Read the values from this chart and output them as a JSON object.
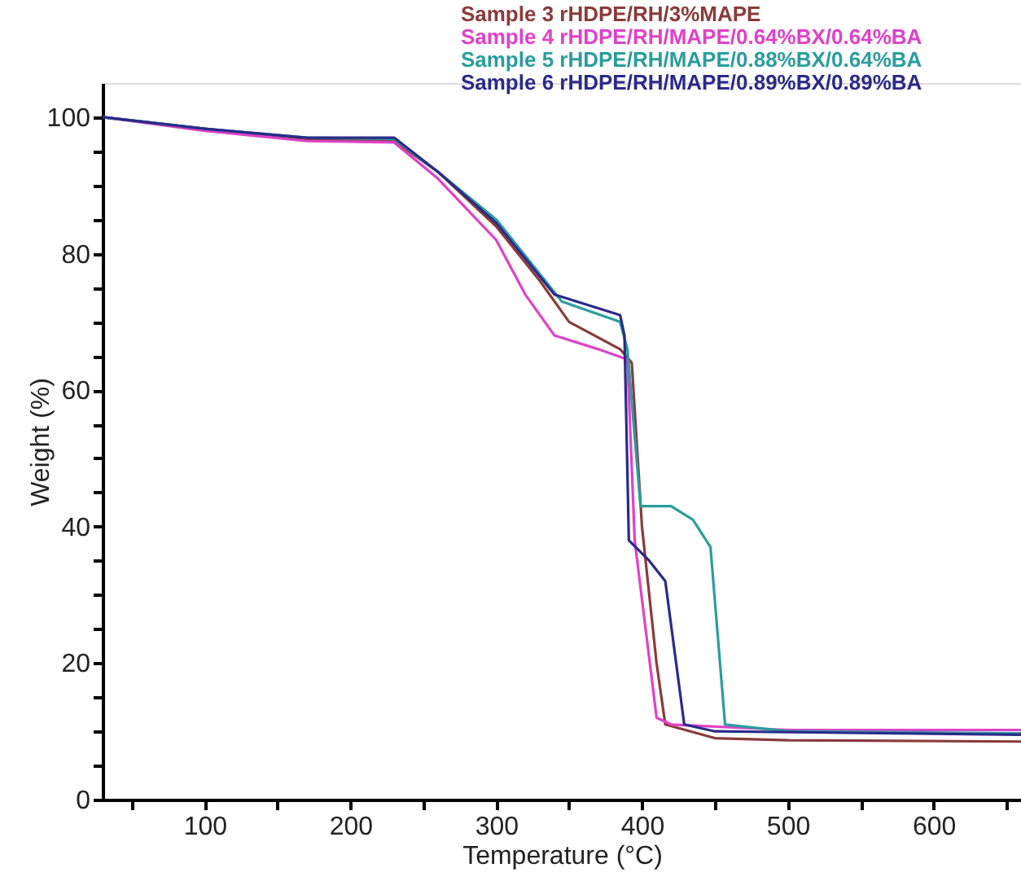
{
  "chart_data": {
    "type": "line",
    "xlabel": "Temperature (°C)",
    "ylabel": "Weight (%)",
    "xlim": [
      30,
      660
    ],
    "ylim": [
      0,
      105
    ],
    "xticks": [
      {
        "value": 50,
        "label": null
      },
      100,
      {
        "value": 150,
        "label": null
      },
      200,
      {
        "value": 250,
        "label": null
      },
      300,
      {
        "value": 350,
        "label": null
      },
      400,
      {
        "value": 450,
        "label": null
      },
      500,
      {
        "value": 550,
        "label": null
      },
      600,
      {
        "value": 650,
        "label": null
      }
    ],
    "yticks": [
      0,
      {
        "value": 5,
        "label": null
      },
      {
        "value": 10,
        "label": null
      },
      {
        "value": 15,
        "label": null
      },
      20,
      {
        "value": 25,
        "label": null
      },
      {
        "value": 30,
        "label": null
      },
      {
        "value": 35,
        "label": null
      },
      40,
      {
        "value": 45,
        "label": null
      },
      {
        "value": 50,
        "label": null
      },
      {
        "value": 55,
        "label": null
      },
      60,
      {
        "value": 65,
        "label": null
      },
      {
        "value": 70,
        "label": null
      },
      {
        "value": 75,
        "label": null
      },
      80,
      {
        "value": 85,
        "label": null
      },
      {
        "value": 90,
        "label": null
      },
      {
        "value": 95,
        "label": null
      },
      100
    ],
    "grid": false,
    "legend": "top right",
    "marker": "none",
    "line_style": "solid",
    "series": [
      {
        "name": "Sample 3  rHDPE/RH/3%MAPE",
        "color": "#8b3a3a",
        "x": [
          30,
          100,
          170,
          230,
          260,
          300,
          330,
          350,
          385,
          393,
          400,
          410,
          416,
          450,
          500,
          660
        ],
        "values": [
          100,
          98.3,
          96.8,
          96.5,
          92,
          84,
          76,
          70,
          66,
          64,
          40,
          20,
          11,
          9,
          8.7,
          8.5
        ]
      },
      {
        "name": "Sample 4  rHDPE/RH/MAPE/0.64%BX/0.64%BA",
        "color": "#e040c8",
        "x": [
          30,
          100,
          170,
          230,
          260,
          300,
          320,
          340,
          370,
          390,
          395,
          410,
          420,
          500,
          660
        ],
        "values": [
          100,
          98,
          96.5,
          96.3,
          91,
          82,
          74,
          68,
          66,
          64.5,
          38,
          12,
          11,
          10.2,
          10.2
        ]
      },
      {
        "name": "Sample 5  rHDPE/RH/MAPE/0.88%BX/0.64%BA",
        "color": "#2a9d9d",
        "x": [
          30,
          100,
          170,
          230,
          260,
          300,
          330,
          345,
          385,
          390,
          399,
          420,
          435,
          447,
          457,
          500,
          660
        ],
        "values": [
          100,
          98.3,
          97,
          96.8,
          92,
          85,
          77,
          73,
          70,
          66,
          43,
          43,
          41,
          37,
          11,
          10,
          9.7
        ]
      },
      {
        "name": "Sample 6  rHDPE/RH/MAPE/0.89%BX/0.89%BA",
        "color": "#2a2a8a",
        "x": [
          30,
          100,
          170,
          230,
          260,
          300,
          340,
          385,
          388,
          391,
          405,
          416,
          429,
          450,
          660
        ],
        "values": [
          100,
          98.3,
          97,
          97,
          92,
          84.5,
          74,
          71,
          68,
          38,
          35,
          32,
          11,
          10,
          9.5
        ]
      }
    ]
  }
}
